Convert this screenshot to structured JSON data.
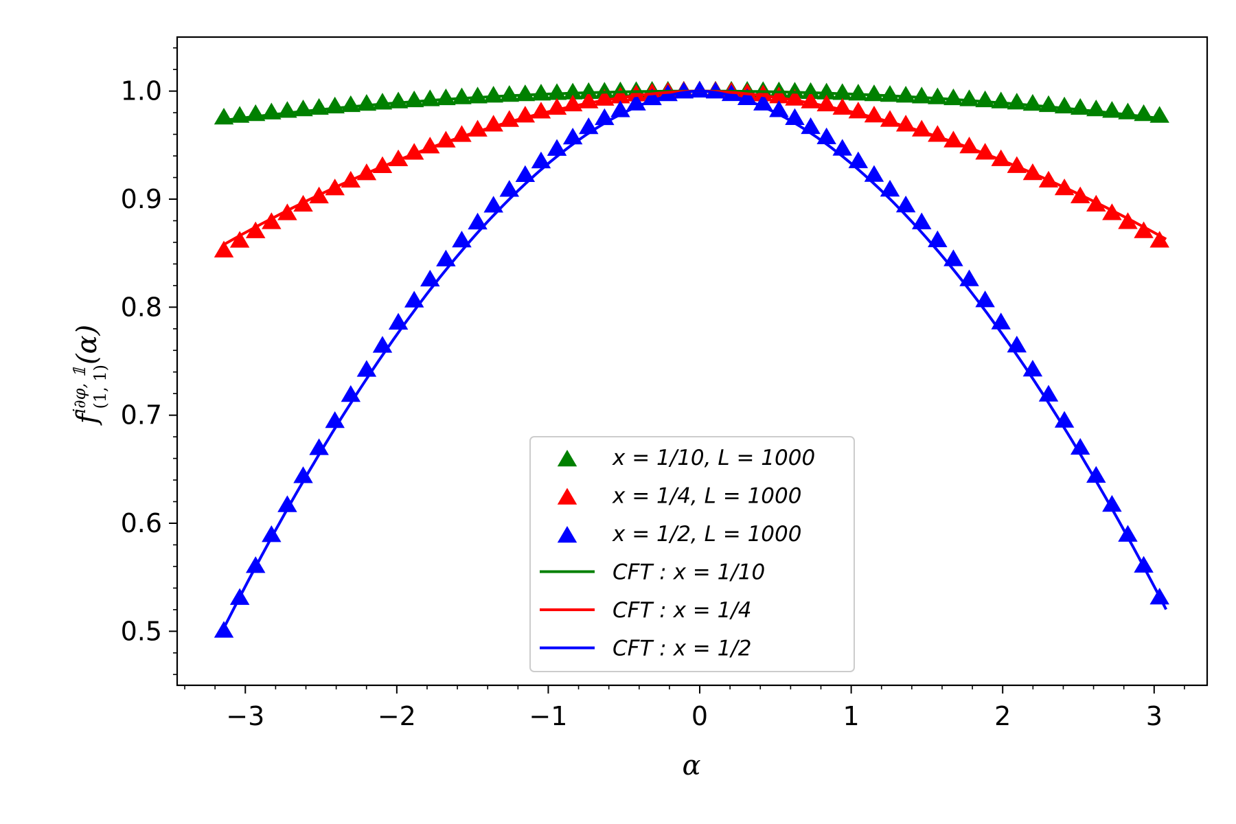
{
  "chart_data": {
    "type": "scatter",
    "xlabel": "α",
    "ylabel": "f",
    "ylabel_superscript": "i∂φ, 𝟙",
    "ylabel_subscript": "(1, 1)",
    "ylabel_argument": "(α)",
    "xlim": [
      -3.45,
      3.35
    ],
    "ylim": [
      0.45,
      1.05
    ],
    "xticks": [
      -3,
      -2,
      -1,
      0,
      1,
      2,
      3
    ],
    "xtick_labels": [
      "−3",
      "−2",
      "−1",
      "0",
      "1",
      "2",
      "3"
    ],
    "yticks": [
      0.5,
      0.6,
      0.7,
      0.8,
      0.9,
      1.0
    ],
    "ytick_labels": [
      "0.5",
      "0.6",
      "0.7",
      "0.8",
      "0.9",
      "1.0"
    ],
    "grid": false,
    "legend_position": "lower center",
    "alpha_range": [
      -3.1416,
      3.0788
    ],
    "alpha_step": 0.1047,
    "series": [
      {
        "name": "x = 1/10, L = 1000",
        "kind": "markers",
        "color": "#008000",
        "peak": 1.0,
        "end_value": 0.975,
        "shape_exponent": 2.0
      },
      {
        "name": "x = 1/4, L = 1000",
        "kind": "markers",
        "color": "#ff0000",
        "peak": 1.0,
        "end_value": 0.852,
        "shape_exponent": 1.85
      },
      {
        "name": "x = 1/2, L = 1000",
        "kind": "markers",
        "color": "#0000ff",
        "peak": 1.0,
        "end_value": 0.5,
        "shape_exponent": 1.85
      },
      {
        "name": "CFT : x = 1/10",
        "kind": "line",
        "color": "#008000",
        "peak": 1.0,
        "end_value": 0.973,
        "shape_exponent": 2.0
      },
      {
        "name": "CFT : x = 1/4",
        "kind": "line",
        "color": "#ff0000",
        "peak": 1.0,
        "end_value": 0.858,
        "shape_exponent": 1.75
      },
      {
        "name": "CFT : x = 1/2",
        "kind": "line",
        "color": "#0000ff",
        "peak": 1.0,
        "end_value": 0.503,
        "shape_exponent": 1.75
      }
    ],
    "legend": [
      {
        "label": "x = 1/10, L = 1000",
        "kind": "marker",
        "color": "#008000"
      },
      {
        "label": "x = 1/4, L = 1000",
        "kind": "marker",
        "color": "#ff0000"
      },
      {
        "label": "x = 1/2, L = 1000",
        "kind": "marker",
        "color": "#0000ff"
      },
      {
        "label": "CFT : x = 1/10",
        "kind": "line",
        "color": "#008000"
      },
      {
        "label": "CFT : x = 1/4",
        "kind": "line",
        "color": "#ff0000"
      },
      {
        "label": "CFT : x = 1/2",
        "kind": "line",
        "color": "#0000ff"
      }
    ]
  }
}
